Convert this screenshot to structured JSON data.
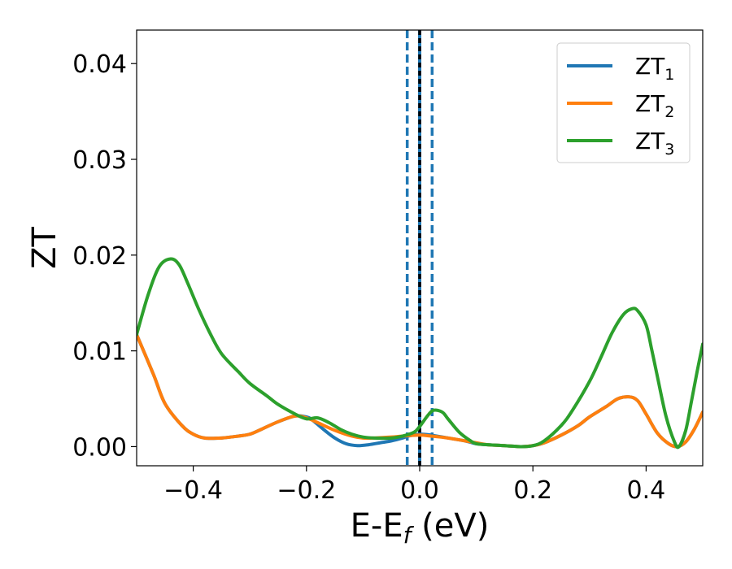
{
  "chart_data": {
    "type": "line",
    "title": "",
    "xlabel": "E-E",
    "xlabel_subscript": "f",
    "xlabel_unit": " (eV)",
    "ylabel": "ZT",
    "xlim": [
      -0.5,
      0.5
    ],
    "ylim": [
      -0.002,
      0.0435
    ],
    "xticks": [
      -0.4,
      -0.2,
      0.0,
      0.2,
      0.4
    ],
    "xtick_labels": [
      "−0.4",
      "−0.2",
      "0.0",
      "0.2",
      "0.4"
    ],
    "yticks": [
      0.0,
      0.01,
      0.02,
      0.03,
      0.04
    ],
    "ytick_labels": [
      "0.00",
      "0.01",
      "0.02",
      "0.03",
      "0.04"
    ],
    "grid": false,
    "legend_position": "top-right",
    "series": [
      {
        "name": "ZT",
        "subscript": "1",
        "color": "#1f77b4",
        "x": [
          -0.5,
          -0.47,
          -0.45,
          -0.42,
          -0.4,
          -0.38,
          -0.35,
          -0.32,
          -0.3,
          -0.28,
          -0.25,
          -0.22,
          -0.2,
          -0.19,
          -0.17,
          -0.15,
          -0.13,
          -0.11,
          -0.09,
          -0.07,
          -0.05,
          -0.03,
          -0.02,
          0.0,
          0.02,
          0.05,
          0.08,
          0.1,
          0.12,
          0.15,
          0.18,
          0.2,
          0.22,
          0.25,
          0.28,
          0.3,
          0.33,
          0.35,
          0.37,
          0.385,
          0.4,
          0.42,
          0.44,
          0.455,
          0.47,
          0.485,
          0.5
        ],
        "y": [
          0.0117,
          0.0075,
          0.0045,
          0.0022,
          0.0013,
          0.0009,
          0.0009,
          0.0011,
          0.0013,
          0.0018,
          0.0026,
          0.0032,
          0.0031,
          0.0028,
          0.0018,
          0.0009,
          0.0003,
          0.0001,
          0.0002,
          0.0004,
          0.0006,
          0.0009,
          0.0011,
          0.0013,
          0.0012,
          0.0009,
          0.0006,
          0.0003,
          0.0002,
          0.0001,
          0.0,
          0.0001,
          0.0004,
          0.0012,
          0.0022,
          0.0031,
          0.0042,
          0.005,
          0.0052,
          0.0048,
          0.0034,
          0.0014,
          0.0003,
          0.0,
          0.0005,
          0.0018,
          0.0036
        ]
      },
      {
        "name": "ZT",
        "subscript": "2",
        "color": "#ff7f0e",
        "x": [
          -0.5,
          -0.47,
          -0.45,
          -0.42,
          -0.4,
          -0.38,
          -0.35,
          -0.32,
          -0.3,
          -0.28,
          -0.25,
          -0.22,
          -0.2,
          -0.18,
          -0.15,
          -0.12,
          -0.1,
          -0.08,
          -0.05,
          -0.03,
          0.0,
          0.02,
          0.05,
          0.08,
          0.1,
          0.12,
          0.15,
          0.18,
          0.2,
          0.22,
          0.25,
          0.28,
          0.3,
          0.33,
          0.35,
          0.37,
          0.385,
          0.4,
          0.42,
          0.44,
          0.455,
          0.47,
          0.485,
          0.5
        ],
        "y": [
          0.0117,
          0.0075,
          0.0045,
          0.0022,
          0.0013,
          0.0009,
          0.0009,
          0.0011,
          0.0013,
          0.0018,
          0.0026,
          0.0032,
          0.003,
          0.0025,
          0.0017,
          0.0011,
          0.0009,
          0.0009,
          0.001,
          0.0011,
          0.0012,
          0.0011,
          0.0009,
          0.0006,
          0.0004,
          0.0002,
          0.0001,
          0.0,
          0.0001,
          0.0004,
          0.0012,
          0.0022,
          0.0031,
          0.0042,
          0.005,
          0.0052,
          0.0048,
          0.0034,
          0.0014,
          0.0003,
          0.0,
          0.0005,
          0.0018,
          0.0036
        ]
      },
      {
        "name": "ZT",
        "subscript": "3",
        "color": "#2ca02c",
        "x": [
          -0.5,
          -0.48,
          -0.46,
          -0.44,
          -0.425,
          -0.41,
          -0.39,
          -0.37,
          -0.35,
          -0.32,
          -0.3,
          -0.27,
          -0.25,
          -0.22,
          -0.2,
          -0.18,
          -0.16,
          -0.14,
          -0.12,
          -0.1,
          -0.08,
          -0.05,
          -0.03,
          -0.01,
          0.0,
          0.015,
          0.025,
          0.04,
          0.05,
          0.07,
          0.09,
          0.1,
          0.12,
          0.15,
          0.18,
          0.2,
          0.22,
          0.25,
          0.27,
          0.3,
          0.32,
          0.34,
          0.36,
          0.375,
          0.385,
          0.4,
          0.41,
          0.42,
          0.435,
          0.45,
          0.458,
          0.47,
          0.48,
          0.49,
          0.5
        ],
        "y": [
          0.0117,
          0.0158,
          0.0188,
          0.0196,
          0.019,
          0.0171,
          0.0143,
          0.0118,
          0.0097,
          0.0078,
          0.0066,
          0.0053,
          0.0044,
          0.0034,
          0.0029,
          0.003,
          0.0025,
          0.0018,
          0.0013,
          0.001,
          0.0009,
          0.0009,
          0.0011,
          0.0015,
          0.0021,
          0.0033,
          0.0038,
          0.0036,
          0.0029,
          0.0015,
          0.0006,
          0.0003,
          0.0002,
          0.0001,
          0.0,
          0.0001,
          0.0006,
          0.0022,
          0.0038,
          0.0068,
          0.0093,
          0.0119,
          0.0138,
          0.0144,
          0.0142,
          0.0127,
          0.0101,
          0.0073,
          0.0032,
          0.0005,
          0.0,
          0.0017,
          0.0047,
          0.0078,
          0.0107
        ]
      }
    ],
    "vertical_lines": [
      {
        "x": -0.022,
        "color": "#1f77b4",
        "style": "dashed"
      },
      {
        "x": 0.0,
        "color": "#1f77b4",
        "style": "solid"
      },
      {
        "x": 0.0,
        "color": "#000000",
        "style": "dashed"
      },
      {
        "x": 0.022,
        "color": "#1f77b4",
        "style": "dashed"
      }
    ]
  }
}
